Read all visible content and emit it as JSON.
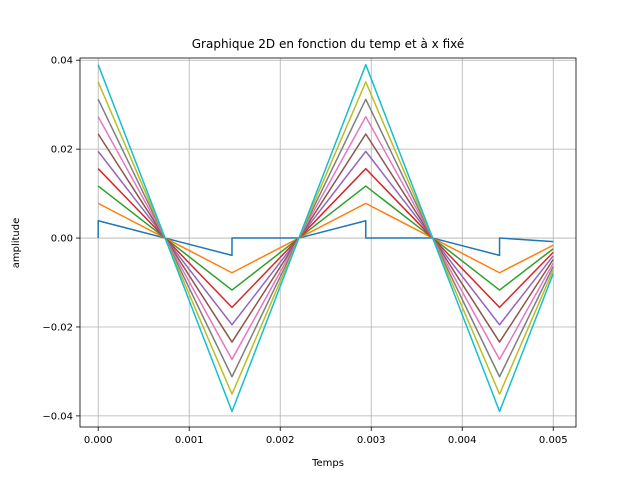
{
  "chart_data": {
    "type": "line",
    "title": "Graphique 2D en fonction du temp et à x fixé",
    "xlabel": "Temps",
    "ylabel": "amplitude",
    "xlim": [
      -0.0002,
      0.00525
    ],
    "ylim": [
      -0.0425,
      0.0405
    ],
    "xticks": [
      0.0,
      0.001,
      0.002,
      0.003,
      0.004,
      0.005
    ],
    "xtick_labels": [
      "0.000",
      "0.001",
      "0.002",
      "0.003",
      "0.004",
      "0.005"
    ],
    "yticks": [
      -0.04,
      -0.02,
      0.0,
      0.02,
      0.04
    ],
    "ytick_labels": [
      "−0.04",
      "−0.02",
      "0.00",
      "0.02",
      "0.04"
    ],
    "grid": true,
    "x": [
      0.0,
      0.0,
      0.000735,
      0.00147,
      0.00147,
      0.002205,
      0.00294,
      0.00294,
      0.003675,
      0.00441,
      0.00441,
      0.005
    ],
    "series": [
      {
        "values": [
          0.0,
          0.0039,
          0.0,
          -0.0039,
          0.0,
          0.0,
          0.0039,
          0.0,
          0.0,
          -0.0039,
          0.0,
          -0.0008
        ],
        "color": "#1f77b4"
      },
      {
        "values": [
          0.0078,
          0.0078,
          0.0,
          -0.0078,
          -0.0078,
          0.0,
          0.0078,
          0.0078,
          0.0,
          -0.0078,
          -0.0078,
          -0.0016
        ],
        "color": "#ff7f0e"
      },
      {
        "values": [
          0.0117,
          0.0117,
          0.0,
          -0.0117,
          -0.0117,
          0.0,
          0.0117,
          0.0117,
          0.0,
          -0.0117,
          -0.0117,
          -0.0024
        ],
        "color": "#2ca02c"
      },
      {
        "values": [
          0.0156,
          0.0156,
          0.0,
          -0.0156,
          -0.0156,
          0.0,
          0.0156,
          0.0156,
          0.0,
          -0.0156,
          -0.0156,
          -0.0032
        ],
        "color": "#d62728"
      },
      {
        "values": [
          0.0195,
          0.0195,
          0.0,
          -0.0195,
          -0.0195,
          0.0,
          0.0195,
          0.0195,
          0.0,
          -0.0195,
          -0.0195,
          -0.004
        ],
        "color": "#9467bd"
      },
      {
        "values": [
          0.0234,
          0.0234,
          0.0,
          -0.0234,
          -0.0234,
          0.0,
          0.0234,
          0.0234,
          0.0,
          -0.0234,
          -0.0234,
          -0.0048
        ],
        "color": "#8c564b"
      },
      {
        "values": [
          0.0273,
          0.0273,
          0.0,
          -0.0273,
          -0.0273,
          0.0,
          0.0273,
          0.0273,
          0.0,
          -0.0273,
          -0.0273,
          -0.0056
        ],
        "color": "#e377c2"
      },
      {
        "values": [
          0.0312,
          0.0312,
          0.0,
          -0.0312,
          -0.0312,
          0.0,
          0.0312,
          0.0312,
          0.0,
          -0.0312,
          -0.0312,
          -0.0064
        ],
        "color": "#7f7f7f"
      },
      {
        "values": [
          0.0351,
          0.0351,
          0.0,
          -0.0351,
          -0.0351,
          0.0,
          0.0351,
          0.0351,
          0.0,
          -0.0351,
          -0.0351,
          -0.0072
        ],
        "color": "#bcbd22"
      },
      {
        "values": [
          0.039,
          0.039,
          0.0,
          -0.039,
          -0.039,
          0.0,
          0.039,
          0.039,
          0.0,
          -0.039,
          -0.039,
          -0.008
        ],
        "color": "#17becf"
      }
    ]
  }
}
